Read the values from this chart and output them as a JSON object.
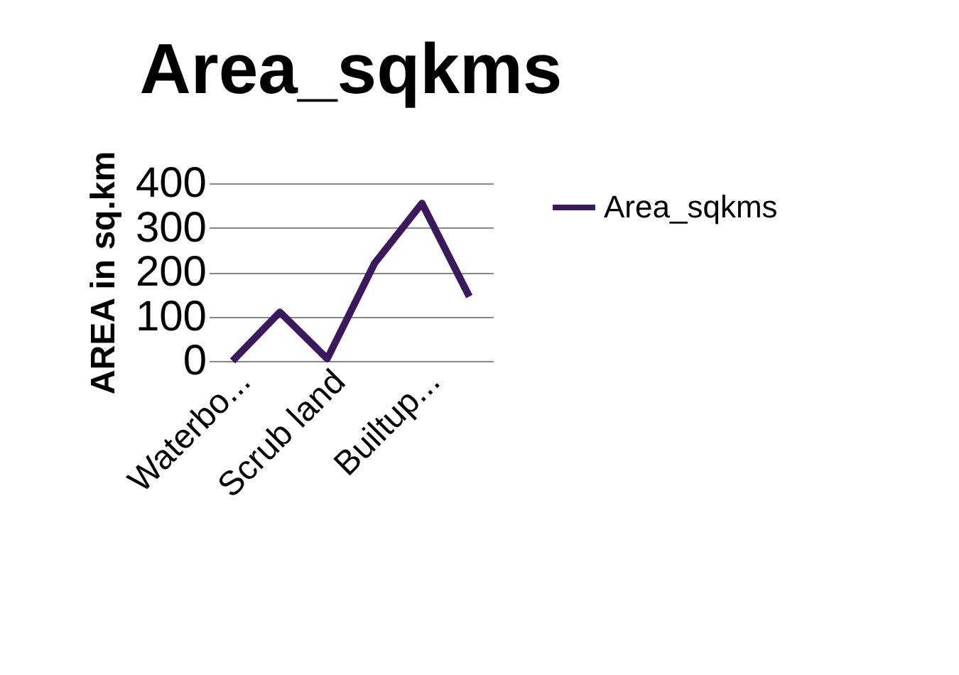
{
  "chart_data": {
    "type": "line",
    "title": "Area_sqkms",
    "ylabel": "AREA in sq.km",
    "categories": [
      "Waterbo...",
      null,
      "Scrub land",
      null,
      "Builtup...",
      null
    ],
    "series": [
      {
        "name": "Area_sqkms",
        "color": "#3a1a5c",
        "values": [
          0,
          110,
          5,
          220,
          355,
          145
        ]
      }
    ],
    "ylim": [
      0,
      400
    ],
    "yticks": [
      0,
      100,
      200,
      300,
      400
    ],
    "grid": "y",
    "legend": "right",
    "marker": "none",
    "line_style": "solid"
  }
}
